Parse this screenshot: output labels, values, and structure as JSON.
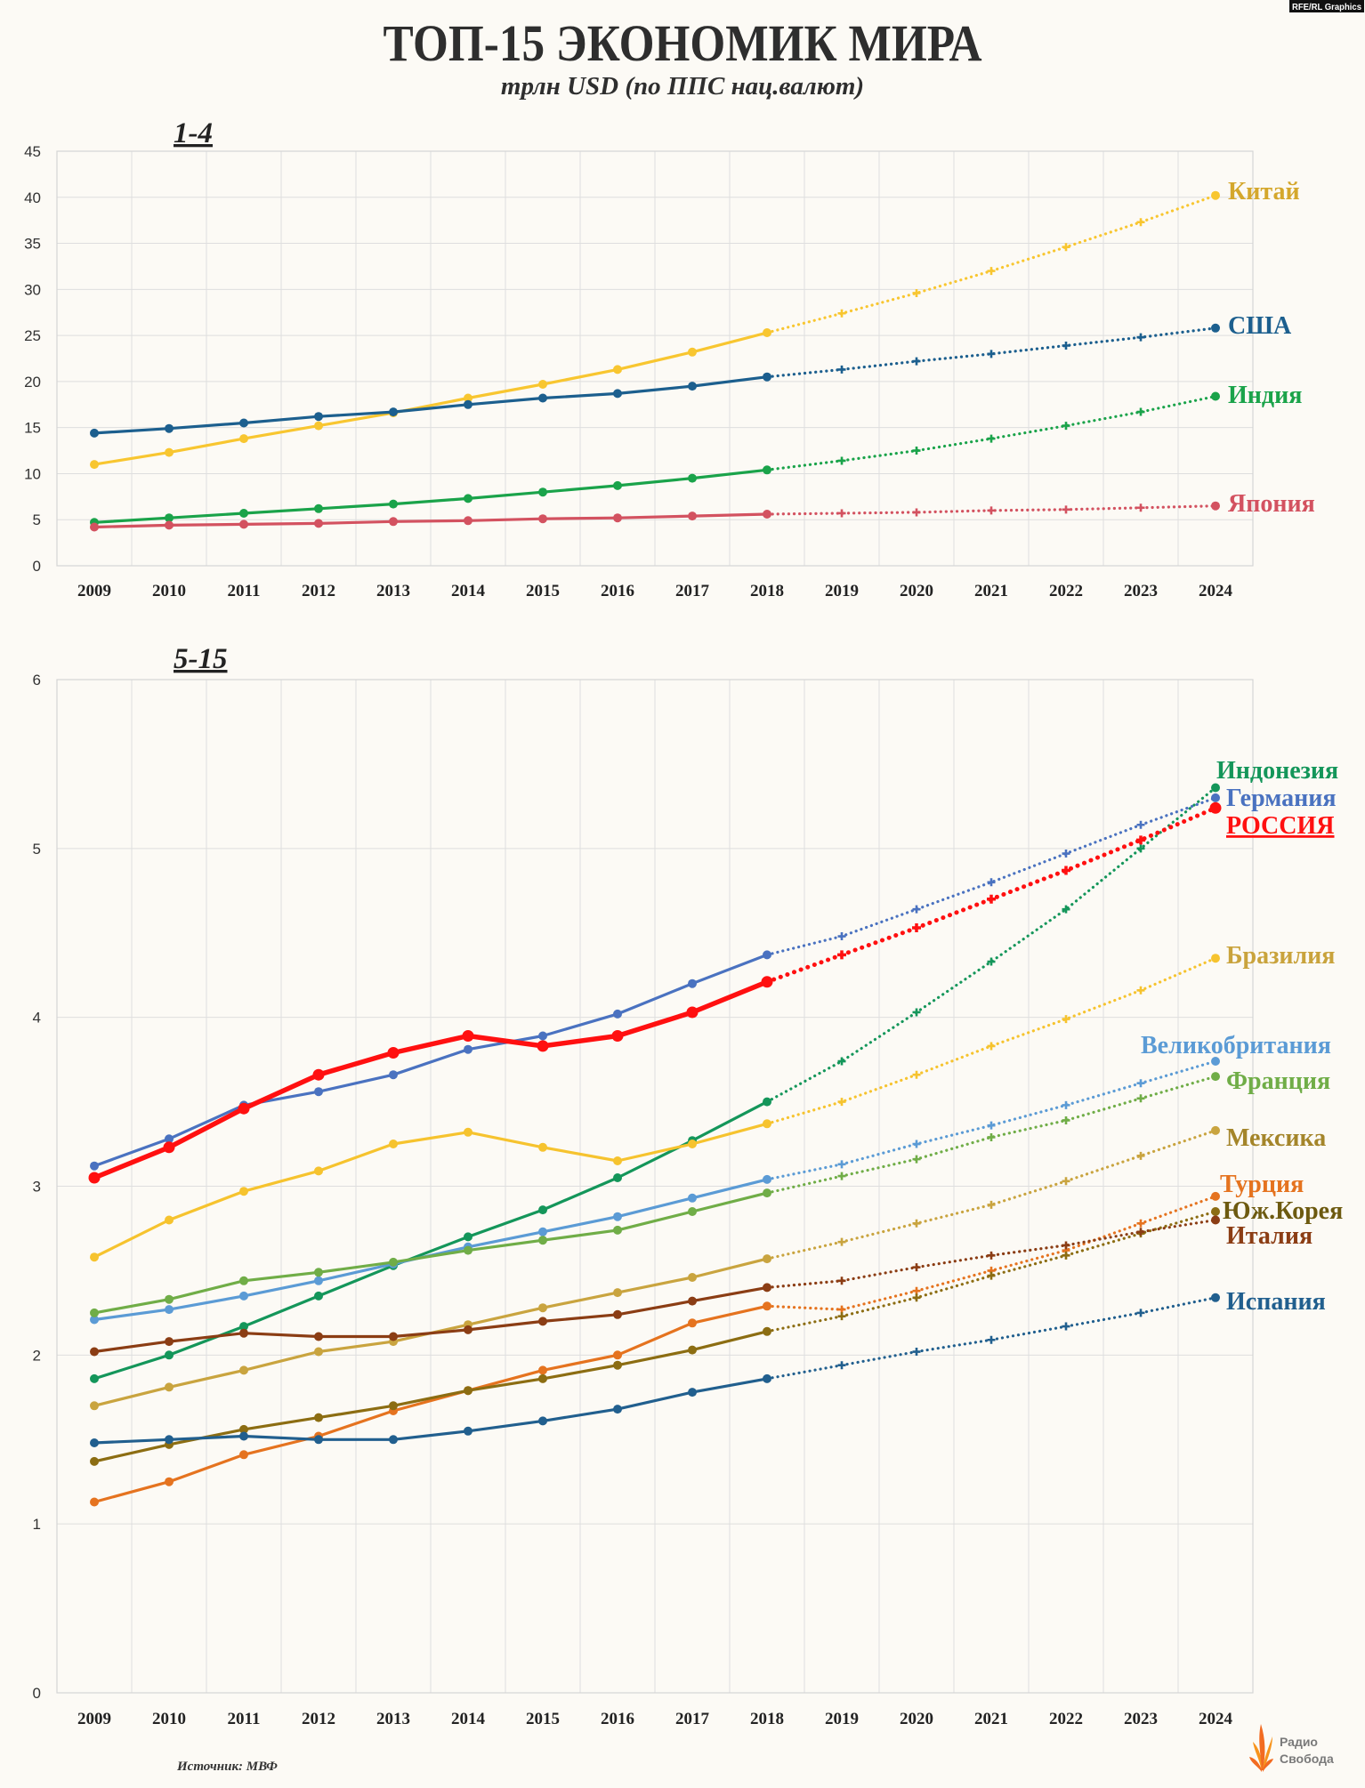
{
  "badge": "RFE/RL Graphics",
  "title": "ТОП-15 ЭКОНОМИК МИРА",
  "subtitle": "трлн USD (по ППС нац.валют)",
  "source": "Источник: МВФ",
  "logo": {
    "line1": "Радио",
    "line2": "Свобода",
    "icon": "torch-flame-icon"
  },
  "chart_data": [
    {
      "type": "line",
      "title": "1-4",
      "x": [
        "2009",
        "2010",
        "2011",
        "2012",
        "2013",
        "2014",
        "2015",
        "2016",
        "2017",
        "2018",
        "2019",
        "2020",
        "2021",
        "2022",
        "2023",
        "2024"
      ],
      "ylim": [
        0,
        45
      ],
      "yticks": [
        0,
        5,
        10,
        15,
        20,
        25,
        30,
        35,
        40,
        45
      ],
      "grid": true,
      "legend": "right",
      "series": [
        {
          "name": "Китай",
          "color": "#f8c630",
          "label_color": "#d4a72c",
          "values": [
            11.0,
            12.3,
            13.8,
            15.2,
            16.6,
            18.2,
            19.7,
            21.3,
            23.2,
            25.3,
            27.4,
            29.6,
            32.0,
            34.6,
            37.3,
            40.2
          ]
        },
        {
          "name": "США",
          "color": "#1c5f8e",
          "values": [
            14.4,
            14.9,
            15.5,
            16.2,
            16.7,
            17.5,
            18.2,
            18.7,
            19.5,
            20.5,
            21.3,
            22.2,
            23.0,
            23.9,
            24.8,
            25.8
          ]
        },
        {
          "name": "Индия",
          "color": "#1aa34a",
          "values": [
            4.7,
            5.2,
            5.7,
            6.2,
            6.7,
            7.3,
            8.0,
            8.7,
            9.5,
            10.4,
            11.4,
            12.5,
            13.8,
            15.2,
            16.7,
            18.4
          ]
        },
        {
          "name": "Япония",
          "color": "#d35260",
          "values": [
            4.2,
            4.4,
            4.5,
            4.6,
            4.8,
            4.9,
            5.1,
            5.2,
            5.4,
            5.6,
            5.7,
            5.8,
            6.0,
            6.1,
            6.3,
            6.5
          ]
        }
      ]
    },
    {
      "type": "line",
      "title": "5-15",
      "x": [
        "2009",
        "2010",
        "2011",
        "2012",
        "2013",
        "2014",
        "2015",
        "2016",
        "2017",
        "2018",
        "2019",
        "2020",
        "2021",
        "2022",
        "2023",
        "2024"
      ],
      "ylim": [
        0,
        6
      ],
      "yticks": [
        0,
        1,
        2,
        3,
        4,
        5,
        6
      ],
      "grid": true,
      "legend": "right",
      "series": [
        {
          "name": "Индонезия",
          "color": "#14965a",
          "values": [
            1.86,
            2.0,
            2.17,
            2.35,
            2.53,
            2.7,
            2.86,
            3.05,
            3.27,
            3.5,
            3.74,
            4.03,
            4.33,
            4.64,
            5.0,
            5.36
          ]
        },
        {
          "name": "Германия",
          "color": "#4a72c0",
          "values": [
            3.12,
            3.28,
            3.48,
            3.56,
            3.66,
            3.81,
            3.89,
            4.02,
            4.2,
            4.37,
            4.48,
            4.64,
            4.8,
            4.97,
            5.14,
            5.3
          ]
        },
        {
          "name": "РОССИЯ",
          "color": "#ff1010",
          "highlight": true,
          "values": [
            3.05,
            3.23,
            3.46,
            3.66,
            3.79,
            3.89,
            3.83,
            3.89,
            4.03,
            4.21,
            4.37,
            4.53,
            4.7,
            4.87,
            5.05,
            5.24
          ]
        },
        {
          "name": "Бразилия",
          "color": "#f6c32e",
          "label_color": "#c9a33c",
          "values": [
            2.58,
            2.8,
            2.97,
            3.09,
            3.25,
            3.32,
            3.23,
            3.15,
            3.25,
            3.37,
            3.5,
            3.66,
            3.83,
            3.99,
            4.16,
            4.35
          ]
        },
        {
          "name": "Великобритания",
          "color": "#5b9bd5",
          "values": [
            2.21,
            2.27,
            2.35,
            2.44,
            2.54,
            2.64,
            2.73,
            2.82,
            2.93,
            3.04,
            3.13,
            3.25,
            3.36,
            3.48,
            3.61,
            3.74
          ]
        },
        {
          "name": "Франция",
          "color": "#70ad47",
          "values": [
            2.25,
            2.33,
            2.44,
            2.49,
            2.55,
            2.62,
            2.68,
            2.74,
            2.85,
            2.96,
            3.06,
            3.16,
            3.29,
            3.39,
            3.52,
            3.65
          ]
        },
        {
          "name": "Мексика",
          "color": "#c9a43f",
          "label_color": "#a4852a",
          "values": [
            1.7,
            1.81,
            1.91,
            2.02,
            2.08,
            2.18,
            2.28,
            2.37,
            2.46,
            2.57,
            2.67,
            2.78,
            2.89,
            3.03,
            3.18,
            3.33
          ]
        },
        {
          "name": "Турция",
          "color": "#e5731f",
          "values": [
            1.13,
            1.25,
            1.41,
            1.52,
            1.67,
            1.79,
            1.91,
            2.0,
            2.19,
            2.29,
            2.27,
            2.38,
            2.5,
            2.62,
            2.78,
            2.94
          ]
        },
        {
          "name": "Юж.Корея",
          "color": "#8c6d12",
          "label_color": "#6d5a10",
          "values": [
            1.37,
            1.47,
            1.56,
            1.63,
            1.7,
            1.79,
            1.86,
            1.94,
            2.03,
            2.14,
            2.23,
            2.34,
            2.47,
            2.59,
            2.72,
            2.85
          ]
        },
        {
          "name": "Италия",
          "color": "#8b3d14",
          "values": [
            2.02,
            2.08,
            2.13,
            2.11,
            2.11,
            2.15,
            2.2,
            2.24,
            2.32,
            2.4,
            2.44,
            2.52,
            2.59,
            2.65,
            2.73,
            2.8
          ]
        },
        {
          "name": "Испания",
          "color": "#215f8e",
          "values": [
            1.48,
            1.5,
            1.52,
            1.5,
            1.5,
            1.55,
            1.61,
            1.68,
            1.78,
            1.86,
            1.94,
            2.02,
            2.09,
            2.17,
            2.25,
            2.34
          ]
        }
      ]
    }
  ]
}
